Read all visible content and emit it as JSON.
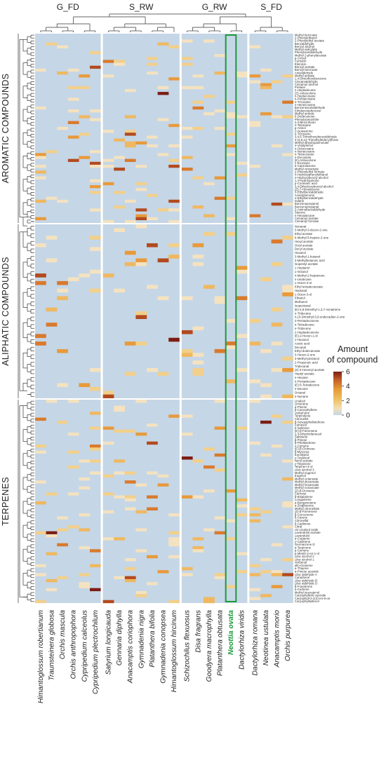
{
  "chart_data": {
    "type": "heatmap",
    "group_labels": [
      "G_FD",
      "S_RW",
      "G_RW",
      "S_FD"
    ],
    "section_labels": [
      "AROMATIC COMPOUNDS",
      "ALIPHATIC COMPOUNDS",
      "TERPENES"
    ],
    "species": [
      "Himantoglossum robertianum",
      "Traunsteinera globosa",
      "Orchis mascula",
      "Orchis anthropophora",
      "Cypripedium calceolus",
      "Cypripedium plectrochilum",
      "Satyrium longicauda",
      "Gennaria diphylla",
      "Anacamptis coriophora",
      "Gymnadenia nigra",
      "Platanthera bifolia",
      "Gymnadenia conopsea",
      "Himantoglossum hircinum",
      "Schizochilus flexuosus",
      "Disa fragrans",
      "Goodyera macrophylla",
      "Platanthera obtusata",
      "Neottia ovata",
      "Dactylorhiza viridis",
      "Dactylorhiza romana",
      "Neotinea ustulata",
      "Anacamptis morio",
      "Orchis purpurea"
    ],
    "highlighted_species": "Neottia ovata",
    "aromatic": [
      "Methyl benzoate",
      "2-Phenylethanol",
      "2-Phenylethyl acetate",
      "Benzaldehyde",
      "Benzyl alcohol",
      "Methyl salicylate",
      "Phenylacetaldehyde",
      "Methyl 2-phenylacetate",
      "p-Cresol",
      "Cumarin",
      "Elemicin",
      "Benzyl acetate",
      "Benzyl benzoate",
      "Anisaldehyde",
      "Methyl anisate",
      "1,4-Dimethoxybenzene",
      "Cinnamaldehyde",
      "Cinnamyl alcohol",
      "Prelane",
      "n-Heptadecane",
      "(Z)-Anbuxolone",
      "n-Heptacosane",
      "n-Pentacosane",
      "n-Tricosane",
      "n-Heneicosane",
      "Benzeneacetaldehyde",
      "Ethylacetophenone",
      "Methyl anisole",
      "6-Dodecanone",
      "Phenylacetonitrile",
      "2,3-Benzofuran",
      "n-Tetrasane",
      "p-Anisol",
      "Z-Isoasarone",
      "n-Tricosene",
      "3,4,5-Trimethoxybenzaldehyde",
      "3-(4,8,12-Trimethyltridecyl)furan",
      "Methyl dihydrojasmonate",
      "4-Vinylphenol",
      "n-Octacosane",
      "n-Nonacosane",
      "n-Tetracosane",
      "n-Docosane",
      "(E)-Anbuxolone",
      "n-Eicosane",
      "5-Caprolactone",
      "Methyl cinnamate",
      "2-Phenylethyl formate",
      "4-Hydroxyphenylethanol",
      "4-Hydroxybenzyl alcohol",
      "1,4-Hydroquinone",
      "p-Coumaric acid",
      "3,4-Dihydroxybenzyl alcohol",
      "(Z)-7-Hexadecene",
      "3-Ethylbenzaldehyde",
      "Acetophenone",
      "4-Ethylbenzaldehyde",
      "Indane",
      "Benzenepropanol",
      "Benzenepropanal",
      "2-Aminobenzaldehyde",
      "Styrene",
      "n-Hexadecane",
      "Cinnamyl acetate",
      "Cinnamyl formate"
    ],
    "aliphatic": [
      "Nonanal",
      "3-Methyl-3-decen-2-one",
      "Ethyl acetate",
      "6-Methyl-5-hepten-2-one",
      "Hexyl acetate",
      "Octyl acetate",
      "Decyl acetate",
      "Hexanol",
      "3-Methyl-1-butanol",
      "3-Methylbutanoic acid",
      "Isopentyl acetate",
      "1-Heptanol",
      "1-Octanol",
      "4-Methyl-2-heptanone",
      "n-Undecane",
      "1-Octen-3-ol",
      "Ethyl tetradecanoate",
      "Heptanal",
      "1-Octen-3-ol",
      "Ethanol",
      "Methanol",
      "Isopentanal",
      "(E)-4,8-Dimethyl-1,3,7-nonatriene",
      "n-Tridecane",
      "4,10-Dimethyl-5,9-undecadien-2-one",
      "2-Pentadecanone",
      "n-Tetradecane",
      "n-Tridecene",
      "2-Heptadecanone",
      "(E)-2-Hexen-1-ol",
      "1-Hexanol",
      "Acetic acid",
      "Decanal",
      "Ethyl dodecanoate",
      "3-Hexen-2-one",
      "3-Methyl-pentanol",
      "2-Propenoic acid",
      "Tridecanal",
      "(Z)-3-Hexenyl acetate",
      "Heptyl acetate",
      "n-Hexane",
      "n-Pentadecane",
      "(E)-5-Tetradecene",
      "n-Decane",
      "Octanal",
      "n-Nonane"
    ],
    "terpenes": [
      "Linalool",
      "Limonene",
      "α-Pinene",
      "β-Caryophyllene",
      "Verbenone",
      "Terpinolene",
      "Citronellol",
      "β-Sesquiphellandrene",
      "Farnesol",
      "δ-Selinene",
      "(E)-β-Farnesene",
      "2,3-Dihydrofarnesol",
      "Sabinene",
      "β-Pinene",
      "β-Phellandrene",
      "o-Cymene",
      "(E)-β-Ocimene",
      "β-Myrcene",
      "Eucalyptol",
      "γ-Terpineol",
      "Neryl acetate",
      "γ-Terpinene",
      "Terpinen-4-ol",
      "Lilac alcohol 3",
      "Methyl eugenol",
      "Eugenol",
      "Methyl octanoate",
      "Methyl decanoate",
      "Methyl hexanoate",
      "Methyl nonanoate",
      "(Z)-β-Ocimene",
      "Carvone",
      "β-Bisabolene",
      "Longipinene",
      "α-Bergamotene",
      "α-Zingiberene",
      "Methyl citronellate",
      "(Z)-β-Farnesene",
      "β-Curcumene",
      "δ-Carene",
      "Citronellal",
      "δ-Cadinene",
      "Citral",
      "cis-Linalool oxide",
      "Lavandulol acetate",
      "Lavandulol",
      "α-Copaene",
      "γ-Cadinene",
      "Germacrene D",
      "α-Terpinene",
      "p-Cymene",
      "p-Menth-2-en-1-ol",
      "Lilac alcohol 2",
      "Lilac alcohol 1",
      "Verbenol",
      "allo-Ocimene",
      "α-Thujene",
      "α-Pinene epoxide",
      "Lilac aldehyde A",
      "Camphene",
      "Lilac aldehyde B",
      "Lilac aldehyde D",
      "β-Funebrene",
      "α-Cedrene",
      "Methyl isoeugenol",
      "Caryophyllene epoxide",
      "Caryophyll-2-(12)-en-5-on",
      "Caryophylladienol"
    ],
    "legend": {
      "title": "Amount\nof compound",
      "ticks": [
        0,
        2,
        4,
        6
      ],
      "min": 0,
      "max": 6,
      "colors": [
        "#c5d6e6",
        "#f2dfb8",
        "#f0c266",
        "#e69a36",
        "#c8612a",
        "#7b1d12"
      ]
    }
  }
}
